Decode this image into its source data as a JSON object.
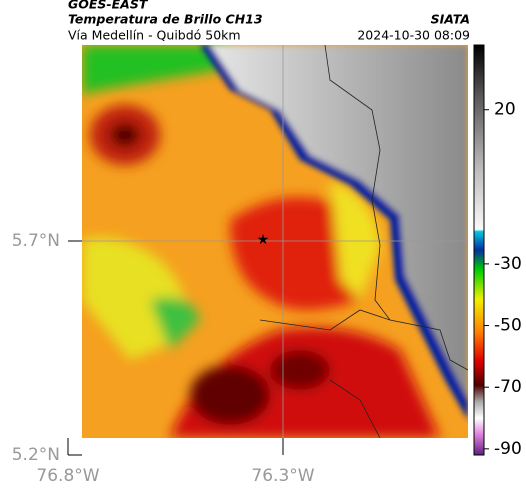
{
  "header": {
    "agency": "GOES-EAST",
    "product": "Temperatura de Brillo CH13",
    "region": "Vía Medellín - Quibdó 50km",
    "institution": "SIATA",
    "datetime": "2024-10-30 08:09"
  },
  "map": {
    "lat_labels": [
      "5.7°N",
      "5.2°N"
    ],
    "lon_labels": [
      "76.8°W",
      "76.3°W"
    ]
  },
  "colorbar": {
    "range": [
      41,
      -92
    ],
    "ticks": [
      20,
      -30,
      -50,
      -70,
      -90
    ]
  }
}
